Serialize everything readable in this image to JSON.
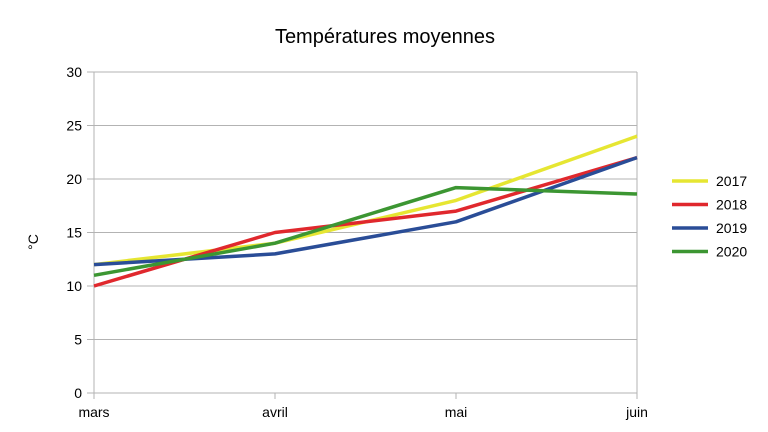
{
  "chart_data": {
    "type": "line",
    "title": "Températures moyennes",
    "xlabel": "",
    "ylabel": "°C",
    "categories": [
      "mars",
      "avril",
      "mai",
      "juin"
    ],
    "ylim": [
      0,
      30
    ],
    "yticks": [
      0,
      5,
      10,
      15,
      20,
      25,
      30
    ],
    "grid": true,
    "legend_position": "right",
    "series": [
      {
        "name": "2017",
        "color": "#e6e632",
        "values": [
          12,
          14,
          18,
          24
        ]
      },
      {
        "name": "2018",
        "color": "#e0282d",
        "values": [
          10,
          15,
          17,
          22
        ]
      },
      {
        "name": "2019",
        "color": "#2a4d97",
        "values": [
          12,
          13,
          16,
          22
        ]
      },
      {
        "name": "2020",
        "color": "#3c9632",
        "values": [
          11,
          14,
          19.2,
          18.6
        ]
      }
    ]
  }
}
